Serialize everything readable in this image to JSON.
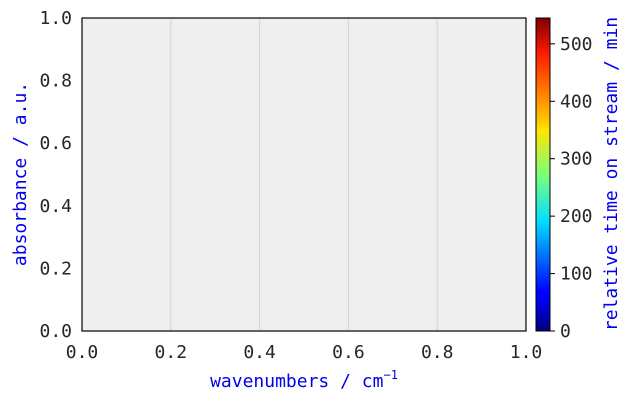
{
  "chart_data": {
    "type": "line",
    "series": [],
    "xlabel": "wavenumbers /",
    "xlabel_unit": "cm",
    "xlabel_unit_exp": "−1",
    "ylabel": "absorbance / a.u.",
    "xlim": [
      0.0,
      1.0
    ],
    "ylim": [
      0.0,
      1.0
    ],
    "x_ticks": [
      "0.0",
      "0.2",
      "0.4",
      "0.6",
      "0.8",
      "1.0"
    ],
    "y_ticks": [
      "0.0",
      "0.2",
      "0.4",
      "0.6",
      "0.8",
      "1.0"
    ],
    "grid": true,
    "grid_axis": "x",
    "plot_background": "#efefef",
    "label_color": "#0000ee",
    "colorbar": {
      "label": "relative time on stream / min",
      "colormap": "jet",
      "range": [
        0,
        545
      ],
      "ticks": [
        "0",
        "100",
        "200",
        "300",
        "400",
        "500"
      ],
      "tick_values": [
        0,
        100,
        200,
        300,
        400,
        500
      ]
    }
  }
}
